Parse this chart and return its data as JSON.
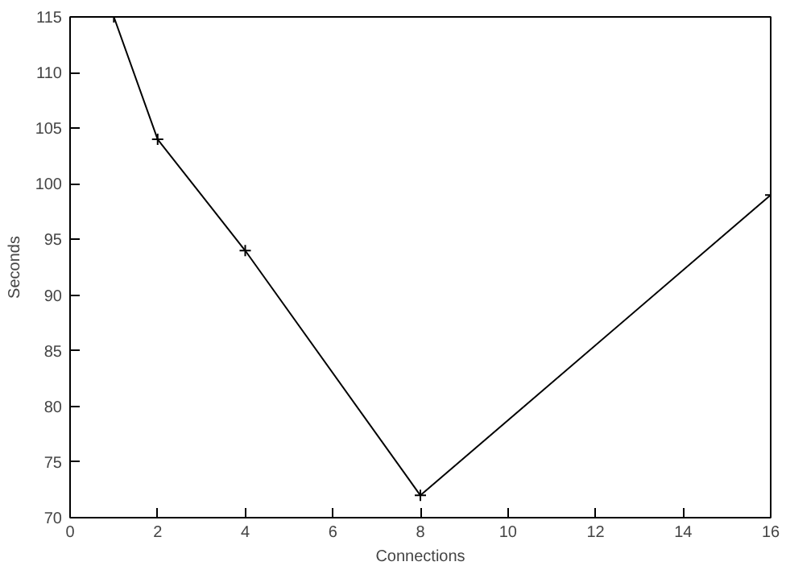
{
  "chart_data": {
    "type": "line",
    "xlabel": "Connections",
    "ylabel": "Seconds",
    "x": [
      1,
      2,
      4,
      8,
      16
    ],
    "series": [
      {
        "color": "#000000",
        "values": [
          115,
          104,
          94,
          72,
          99
        ]
      }
    ],
    "xlim": [
      0,
      16
    ],
    "ylim": [
      70,
      115
    ],
    "xticks": [
      0,
      2,
      4,
      6,
      8,
      10,
      12,
      14,
      16
    ],
    "yticks": [
      70,
      75,
      80,
      85,
      90,
      95,
      100,
      105,
      110,
      115
    ],
    "marker": "cross",
    "line_style": "solid"
  }
}
